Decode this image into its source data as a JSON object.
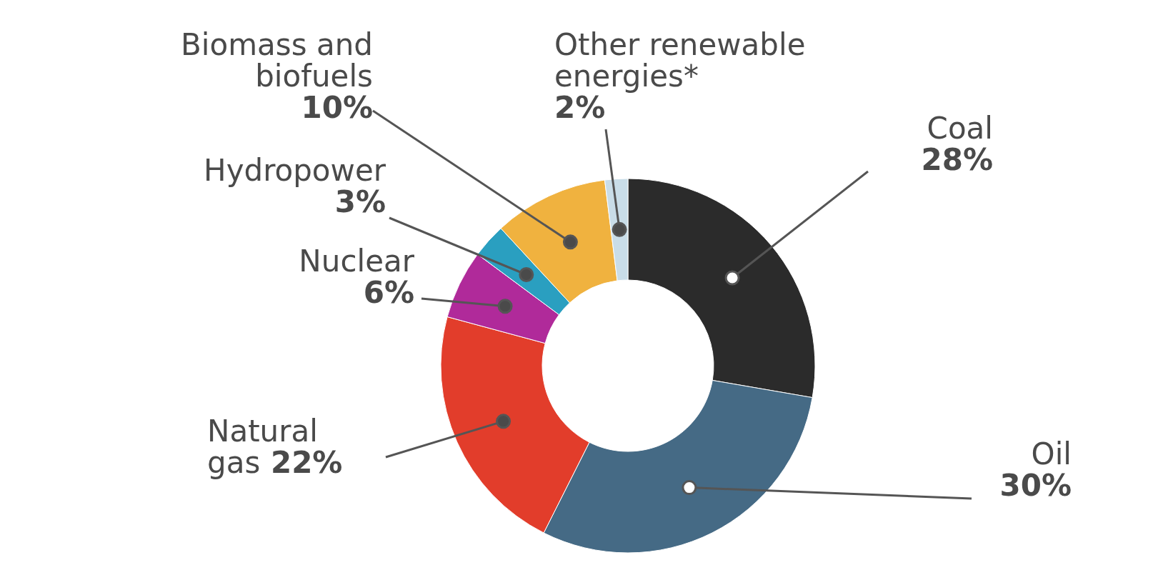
{
  "chart_data": {
    "type": "donut",
    "categories": [
      "Coal",
      "Oil",
      "Natural gas",
      "Nuclear",
      "Hydropower",
      "Biomass and biofuels",
      "Other renewable energies*"
    ],
    "values": [
      28,
      30,
      22,
      6,
      3,
      10,
      2
    ],
    "value_labels": [
      "28%",
      "30%",
      "22%",
      "6%",
      "3%",
      "10%",
      "2%"
    ],
    "colors": [
      "#2b2b2b",
      "#456a85",
      "#e23d2b",
      "#b02a9a",
      "#2a9fc0",
      "#f0b23f",
      "#c9dde8"
    ]
  }
}
